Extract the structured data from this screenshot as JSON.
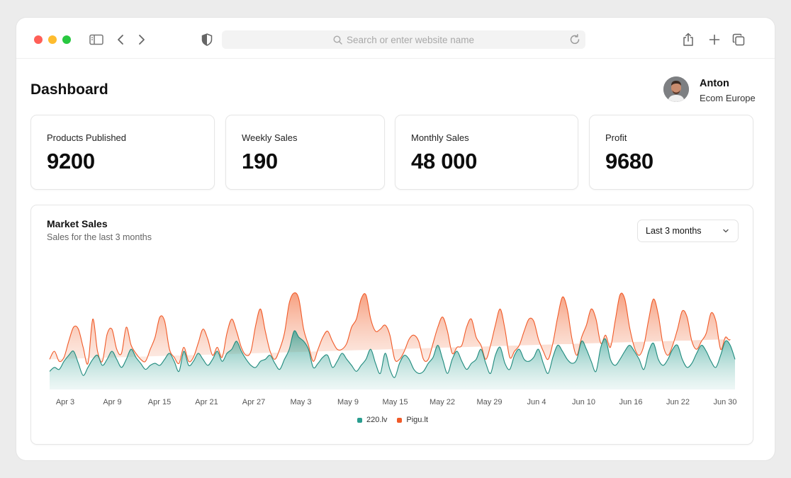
{
  "browser": {
    "address_placeholder": "Search or enter website name",
    "icons": [
      "sidebar-icon",
      "back-icon",
      "forward-icon",
      "shield-icon",
      "search-icon",
      "reload-icon",
      "share-icon",
      "new-tab-icon",
      "tabs-icon"
    ]
  },
  "header": {
    "title": "Dashboard"
  },
  "user": {
    "name": "Anton",
    "org": "Ecom Europe"
  },
  "stats": [
    {
      "label": "Products Published",
      "value": "9200"
    },
    {
      "label": "Weekly Sales",
      "value": "190"
    },
    {
      "label": "Monthly Sales",
      "value": "48 000"
    },
    {
      "label": "Profit",
      "value": "9680"
    }
  ],
  "market": {
    "title": "Market Sales",
    "subtitle": "Sales for the last 3 months",
    "range_label": "Last 3 months"
  },
  "chart_data": {
    "type": "area",
    "x_ticks": [
      "Apr 3",
      "Apr 9",
      "Apr 15",
      "Apr 21",
      "Apr 27",
      "May 3",
      "May 9",
      "May 15",
      "May 22",
      "May 29",
      "Jun 4",
      "Jun 10",
      "Jun 16",
      "Jun 22",
      "Jun 30"
    ],
    "stacked": true,
    "grid": false,
    "legend_position": "bottom-center",
    "series": [
      {
        "name": "220.lv",
        "color": "#2a9d8f",
        "values": [
          18,
          22,
          20,
          28,
          34,
          38,
          26,
          14,
          22,
          30,
          34,
          24,
          30,
          38,
          30,
          22,
          30,
          40,
          32,
          26,
          20,
          24,
          26,
          24,
          30,
          36,
          28,
          18,
          38,
          24,
          28,
          36,
          30,
          24,
          30,
          38,
          28,
          36,
          40,
          48,
          38,
          30,
          24,
          22,
          28,
          30,
          34,
          26,
          20,
          30,
          40,
          58,
          52,
          48,
          40,
          22,
          26,
          32,
          34,
          22,
          28,
          36,
          30,
          24,
          18,
          24,
          30,
          40,
          26,
          16,
          36,
          20,
          12,
          26,
          34,
          30,
          20,
          16,
          18,
          26,
          32,
          44,
          30,
          16,
          30,
          38,
          28,
          20,
          26,
          30,
          40,
          26,
          16,
          34,
          42,
          26,
          20,
          34,
          40,
          30,
          28,
          32,
          40,
          26,
          16,
          32,
          44,
          38,
          30,
          26,
          30,
          48,
          40,
          28,
          18,
          42,
          50,
          30,
          24,
          30,
          38,
          44,
          38,
          30,
          20,
          38,
          46,
          30,
          24,
          30,
          40,
          44,
          30,
          22,
          26,
          36,
          44,
          38,
          28,
          22,
          34,
          48,
          44,
          30
        ]
      },
      {
        "name": "Pigu.lt",
        "color": "#f05a28",
        "values": [
          30,
          38,
          28,
          32,
          48,
          62,
          60,
          42,
          20,
          70,
          34,
          18,
          55,
          60,
          40,
          36,
          62,
          44,
          20,
          22,
          28,
          40,
          52,
          72,
          68,
          40,
          22,
          26,
          35,
          24,
          26,
          46,
          60,
          50,
          28,
          24,
          30,
          56,
          70,
          58,
          28,
          24,
          38,
          64,
          80,
          58,
          26,
          22,
          40,
          56,
          86,
          96,
          90,
          60,
          34,
          28,
          40,
          52,
          58,
          48,
          40,
          30,
          46,
          62,
          70,
          90,
          94,
          70,
          58,
          60,
          64,
          54,
          30,
          22,
          36,
          50,
          54,
          48,
          30,
          26,
          46,
          62,
          72,
          58,
          36,
          28,
          44,
          62,
          70,
          52,
          36,
          28,
          44,
          64,
          80,
          60,
          32,
          26,
          40,
          58,
          70,
          68,
          50,
          38,
          30,
          46,
          72,
          92,
          80,
          50,
          28,
          40,
          64,
          80,
          70,
          46,
          30,
          42,
          68,
          94,
          90,
          62,
          34,
          26,
          44,
          70,
          90,
          74,
          44,
          26,
          40,
          60,
          78,
          72,
          48,
          30,
          38,
          56,
          76,
          68,
          40,
          30,
          50,
          72,
          90
        ]
      }
    ]
  }
}
